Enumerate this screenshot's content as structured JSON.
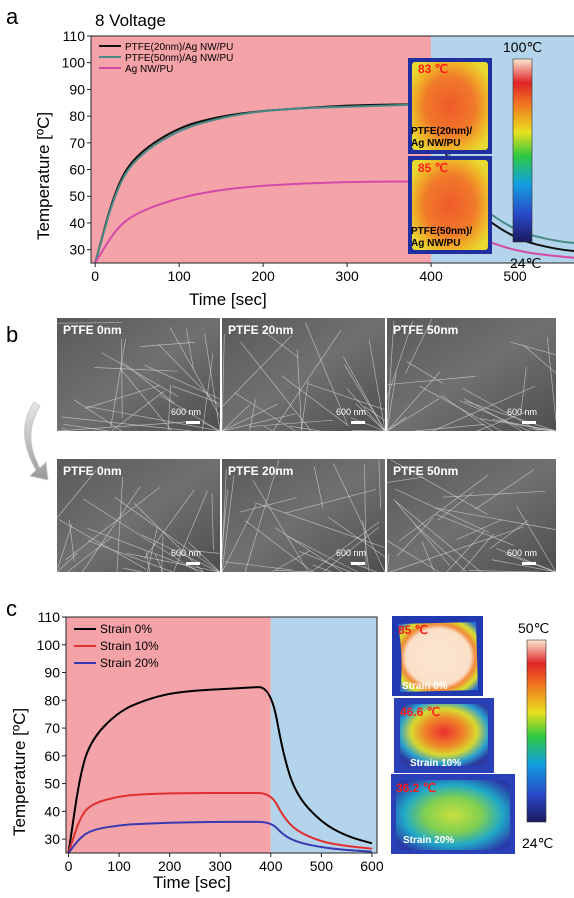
{
  "panel_a": {
    "letter": "a",
    "title": "8 Voltage",
    "thermal": [
      {
        "temp": "83 ℃",
        "label_line1": "PTFE(20nm)/",
        "label_line2": "Ag NW/PU"
      },
      {
        "temp": "85 ℃",
        "label_line1": "PTFE(50nm)/",
        "label_line2": "Ag NW/PU"
      }
    ],
    "colorbar": {
      "max_label": "100℃",
      "min_label": "24℃"
    }
  },
  "panel_b": {
    "letter": "b",
    "rows": [
      [
        {
          "label": "PTFE 0nm",
          "scale": "600 nm"
        },
        {
          "label": "PTFE 20nm",
          "scale": "600 nm"
        },
        {
          "label": "PTFE 50nm",
          "scale": "600 nm"
        }
      ],
      [
        {
          "label": "PTFE 0nm",
          "scale": "600 nm"
        },
        {
          "label": "PTFE 20nm",
          "scale": "600 nm"
        },
        {
          "label": "PTFE 50nm",
          "scale": "600 nm"
        }
      ]
    ]
  },
  "panel_c": {
    "letter": "c",
    "thermal": [
      {
        "temp": "85 ℃",
        "label": "Strain 0%"
      },
      {
        "temp": "46.6 ℃",
        "label": "Strain 10%"
      },
      {
        "temp": "36.2 ℃",
        "label": "Strain 20%"
      }
    ],
    "colorbar": {
      "max_label": "50℃",
      "min_label": "24℃"
    }
  },
  "chart_data": [
    {
      "type": "line",
      "title": "8 Voltage",
      "xlabel": "Time [sec]",
      "ylabel": "Temperature [ºC]",
      "xlim": [
        -5,
        600
      ],
      "ylim": [
        25,
        110
      ],
      "xticks": [
        0,
        100,
        200,
        300,
        400,
        500,
        600
      ],
      "yticks": [
        30,
        40,
        50,
        60,
        70,
        80,
        90,
        100,
        110
      ],
      "shaded_regions": [
        {
          "from": -5,
          "to": 400,
          "color": "#f4a3a8"
        },
        {
          "from": 400,
          "to": 600,
          "color": "#b3d4ea"
        }
      ],
      "legend_position": "top-left",
      "series": [
        {
          "name": "PTFE(20nm)/Ag NW/PU",
          "color": "#111111",
          "x": [
            0,
            25,
            50,
            100,
            150,
            200,
            250,
            300,
            350,
            400,
            425,
            450,
            500,
            550,
            590
          ],
          "y": [
            25,
            54,
            66,
            76,
            80,
            82,
            83,
            84,
            84.3,
            84.5,
            58,
            45,
            34,
            30,
            29
          ]
        },
        {
          "name": "PTFE(50nm)/Ag NW/PU",
          "color": "#4a8a86",
          "x": [
            0,
            25,
            50,
            100,
            150,
            200,
            250,
            300,
            350,
            400,
            425,
            450,
            500,
            550,
            590
          ],
          "y": [
            25,
            53,
            65,
            75,
            79.5,
            82,
            83,
            83.5,
            84,
            84.5,
            62,
            48,
            37,
            33,
            32
          ]
        },
        {
          "name": "Ag NW/PU",
          "color": "#d44aa8",
          "x": [
            0,
            25,
            50,
            100,
            150,
            200,
            250,
            300,
            350,
            400,
            425,
            450,
            500,
            550,
            590
          ],
          "y": [
            25,
            38,
            44,
            49.5,
            52.5,
            54,
            54.8,
            55.3,
            55.5,
            55.5,
            42,
            35,
            29.5,
            27.5,
            26.5
          ]
        }
      ]
    },
    {
      "type": "line",
      "xlabel": "Time [sec]",
      "ylabel": "Temperature [ºC]",
      "xlim": [
        -5,
        610
      ],
      "ylim": [
        25,
        110
      ],
      "xticks": [
        0,
        100,
        200,
        300,
        400,
        500,
        600
      ],
      "yticks": [
        30,
        40,
        50,
        60,
        70,
        80,
        90,
        100,
        110
      ],
      "shaded_regions": [
        {
          "from": -5,
          "to": 400,
          "color": "#f4a3a8"
        },
        {
          "from": 400,
          "to": 610,
          "color": "#b3d4ea"
        }
      ],
      "legend_position": "top-left",
      "series": [
        {
          "name": "Strain 0%",
          "color": "#000000",
          "x": [
            0,
            25,
            50,
            100,
            150,
            200,
            250,
            300,
            350,
            400,
            425,
            450,
            500,
            550,
            600
          ],
          "y": [
            25,
            56,
            67,
            76,
            80,
            82.5,
            83.5,
            84,
            84.5,
            85,
            60,
            46,
            36,
            31,
            28.5
          ]
        },
        {
          "name": "Strain 10%",
          "color": "#e03030",
          "x": [
            0,
            25,
            50,
            100,
            150,
            200,
            250,
            300,
            350,
            400,
            425,
            450,
            500,
            550,
            600
          ],
          "y": [
            25,
            39,
            43,
            45.5,
            46.2,
            46.5,
            46.6,
            46.6,
            46.6,
            46.6,
            38,
            33,
            29,
            27.5,
            26.5
          ]
        },
        {
          "name": "Strain 20%",
          "color": "#3838b0",
          "x": [
            0,
            25,
            50,
            100,
            150,
            200,
            250,
            300,
            350,
            400,
            425,
            450,
            500,
            550,
            600
          ],
          "y": [
            25,
            31,
            33.5,
            35,
            35.6,
            35.9,
            36.1,
            36.2,
            36.2,
            36.2,
            31.5,
            29,
            27,
            26,
            25.5
          ]
        }
      ]
    }
  ]
}
